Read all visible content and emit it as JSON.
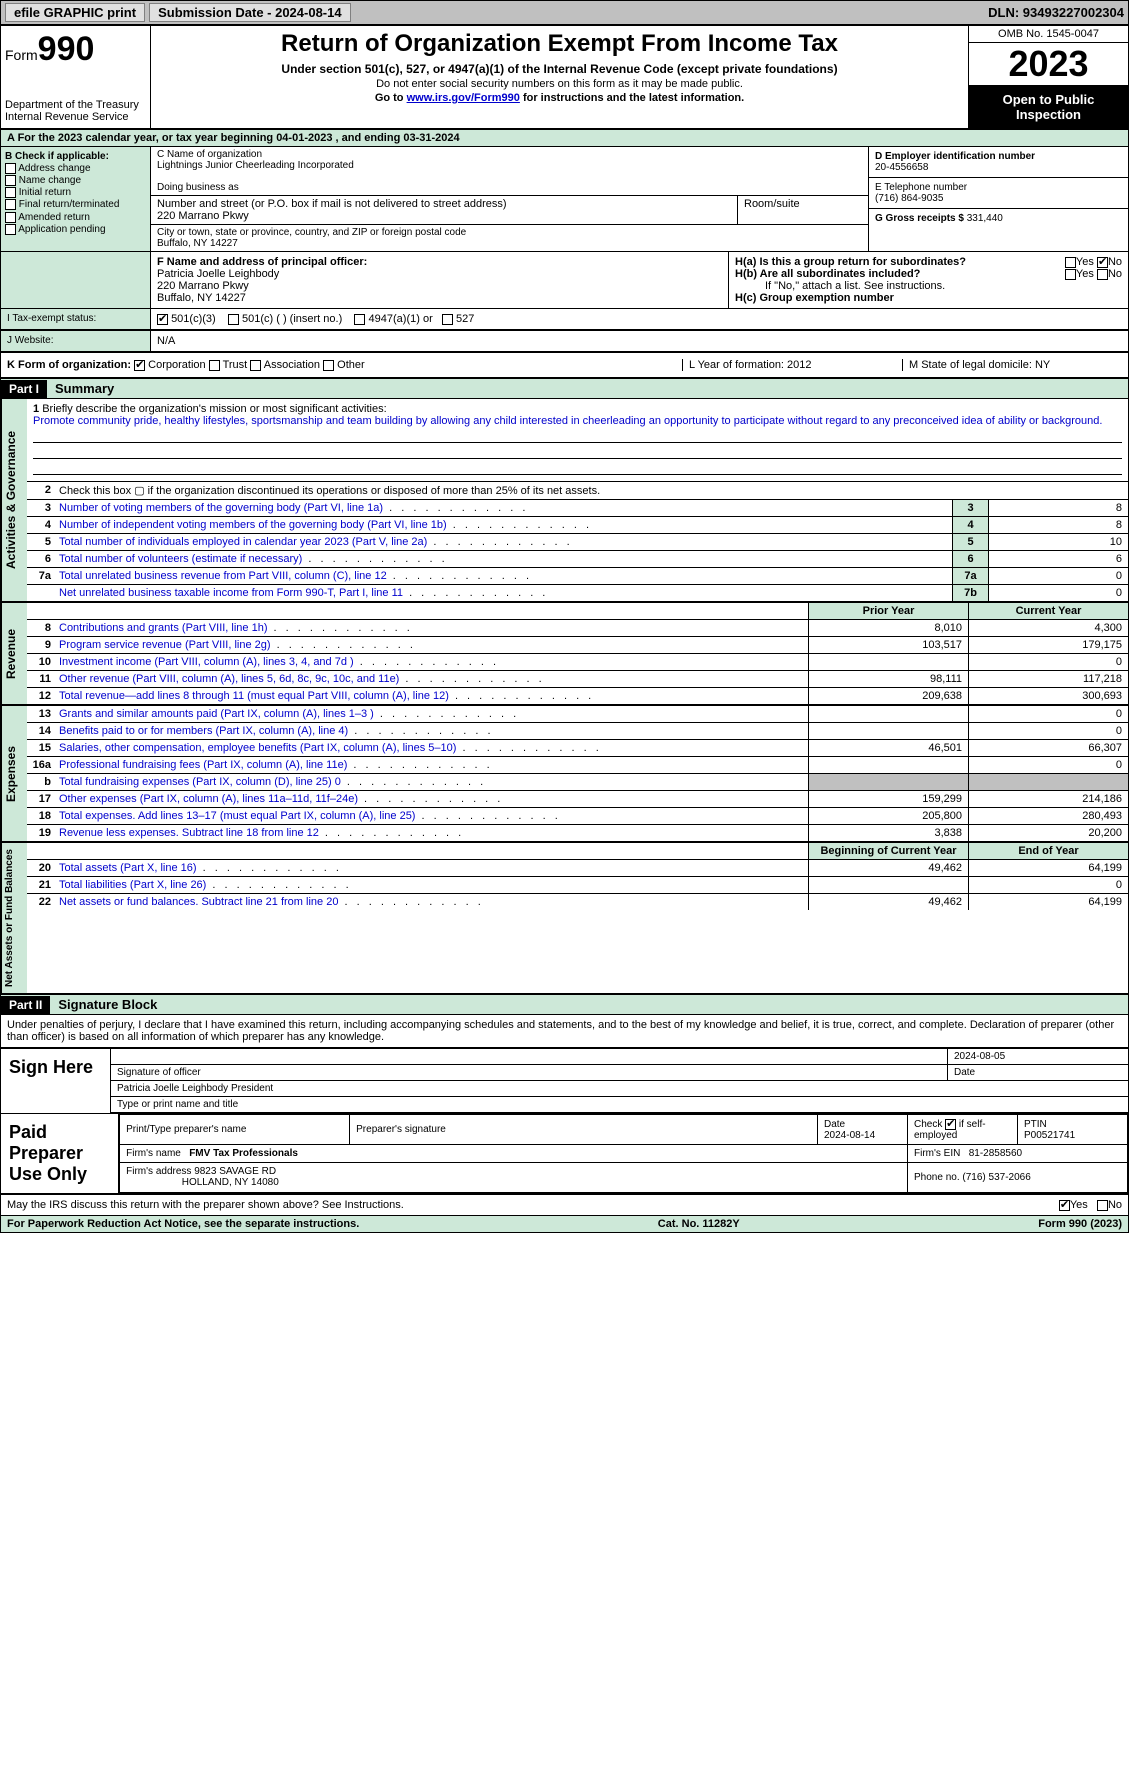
{
  "topbar": {
    "efile": "efile GRAPHIC print",
    "submission_label": "Submission Date - 2024-08-14",
    "dln": "DLN: 93493227002304"
  },
  "header": {
    "form_word": "Form",
    "form_num": "990",
    "dept": "Department of the Treasury Internal Revenue Service",
    "title": "Return of Organization Exempt From Income Tax",
    "subtitle": "Under section 501(c), 527, or 4947(a)(1) of the Internal Revenue Code (except private foundations)",
    "note1": "Do not enter social security numbers on this form as it may be made public.",
    "note2": "Go to www.irs.gov/Form990 for instructions and the latest information.",
    "link": "www.irs.gov/Form990",
    "omb": "OMB No. 1545-0047",
    "year": "2023",
    "open": "Open to Public Inspection"
  },
  "rowA": "A  For the 2023 calendar year, or tax year beginning 04-01-2023    , and ending 03-31-2024",
  "sectionB": {
    "header": "B Check if applicable:",
    "opts": [
      "Address change",
      "Name change",
      "Initial return",
      "Final return/terminated",
      "Amended return",
      "Application pending"
    ]
  },
  "sectionC": {
    "name_lbl": "C Name of organization",
    "name": "Lightnings Junior Cheerleading Incorporated",
    "dba_lbl": "Doing business as",
    "dba": "",
    "street_lbl": "Number and street (or P.O. box if mail is not delivered to street address)",
    "street": "220 Marrano Pkwy",
    "room_lbl": "Room/suite",
    "room": "",
    "city_lbl": "City or town, state or province, country, and ZIP or foreign postal code",
    "city": "Buffalo, NY  14227"
  },
  "sectionD": {
    "ein_lbl": "D Employer identification number",
    "ein": "20-4556658",
    "phone_lbl": "E Telephone number",
    "phone": "(716) 864-9035",
    "gross_lbl": "G Gross receipts $",
    "gross": "331,440"
  },
  "sectionF": {
    "lbl": "F  Name and address of principal officer:",
    "name": "Patricia Joelle Leighbody",
    "addr1": "220 Marrano Pkwy",
    "addr2": "Buffalo, NY  14227"
  },
  "sectionH": {
    "ha": "H(a)  Is this a group return for subordinates?",
    "hb": "H(b)  Are all subordinates included?",
    "hb_note": "If \"No,\" attach a list. See instructions.",
    "hc": "H(c)  Group exemption number",
    "yes": "Yes",
    "no": "No"
  },
  "status": {
    "i_lbl": "I    Tax-exempt status:",
    "opt1": "501(c)(3)",
    "opt2": "501(c) (  ) (insert no.)",
    "opt3": "4947(a)(1) or",
    "opt4": "527",
    "j_lbl": "J   Website:",
    "j_val": "N/A"
  },
  "kRow": {
    "k": "K Form of organization:",
    "opts": [
      "Corporation",
      "Trust",
      "Association",
      "Other"
    ],
    "l": "L Year of formation: 2012",
    "m": "M State of legal domicile: NY"
  },
  "part1": {
    "label": "Part I",
    "title": "Summary"
  },
  "mission": {
    "num": "1",
    "prompt": "Briefly describe the organization's mission or most significant activities:",
    "text": "Promote community pride, healthy lifestyles, sportsmanship and team building by allowing any child interested in cheerleading an opportunity to participate without regard to any preconceived idea of ability or background."
  },
  "line2": "Check this box  ▢  if the organization discontinued its operations or disposed of more than 25% of its net assets.",
  "govLines": [
    {
      "n": "3",
      "t": "Number of voting members of the governing body (Part VI, line 1a)",
      "b": "3",
      "v": "8"
    },
    {
      "n": "4",
      "t": "Number of independent voting members of the governing body (Part VI, line 1b)",
      "b": "4",
      "v": "8"
    },
    {
      "n": "5",
      "t": "Total number of individuals employed in calendar year 2023 (Part V, line 2a)",
      "b": "5",
      "v": "10"
    },
    {
      "n": "6",
      "t": "Total number of volunteers (estimate if necessary)",
      "b": "6",
      "v": "6"
    },
    {
      "n": "7a",
      "t": "Total unrelated business revenue from Part VIII, column (C), line 12",
      "b": "7a",
      "v": "0"
    },
    {
      "n": "",
      "t": "Net unrelated business taxable income from Form 990-T, Part I, line 11",
      "b": "7b",
      "v": "0"
    }
  ],
  "revHeader": {
    "prior": "Prior Year",
    "current": "Current Year"
  },
  "revLines": [
    {
      "n": "8",
      "t": "Contributions and grants (Part VIII, line 1h)",
      "p": "8,010",
      "c": "4,300"
    },
    {
      "n": "9",
      "t": "Program service revenue (Part VIII, line 2g)",
      "p": "103,517",
      "c": "179,175"
    },
    {
      "n": "10",
      "t": "Investment income (Part VIII, column (A), lines 3, 4, and 7d )",
      "p": "",
      "c": "0"
    },
    {
      "n": "11",
      "t": "Other revenue (Part VIII, column (A), lines 5, 6d, 8c, 9c, 10c, and 11e)",
      "p": "98,111",
      "c": "117,218"
    },
    {
      "n": "12",
      "t": "Total revenue—add lines 8 through 11 (must equal Part VIII, column (A), line 12)",
      "p": "209,638",
      "c": "300,693"
    }
  ],
  "expLines": [
    {
      "n": "13",
      "t": "Grants and similar amounts paid (Part IX, column (A), lines 1–3 )",
      "p": "",
      "c": "0"
    },
    {
      "n": "14",
      "t": "Benefits paid to or for members (Part IX, column (A), line 4)",
      "p": "",
      "c": "0"
    },
    {
      "n": "15",
      "t": "Salaries, other compensation, employee benefits (Part IX, column (A), lines 5–10)",
      "p": "46,501",
      "c": "66,307"
    },
    {
      "n": "16a",
      "t": "Professional fundraising fees (Part IX, column (A), line 11e)",
      "p": "",
      "c": "0"
    },
    {
      "n": "b",
      "t": "Total fundraising expenses (Part IX, column (D), line 25) 0",
      "p": "shade",
      "c": "shade"
    },
    {
      "n": "17",
      "t": "Other expenses (Part IX, column (A), lines 11a–11d, 11f–24e)",
      "p": "159,299",
      "c": "214,186"
    },
    {
      "n": "18",
      "t": "Total expenses. Add lines 13–17 (must equal Part IX, column (A), line 25)",
      "p": "205,800",
      "c": "280,493"
    },
    {
      "n": "19",
      "t": "Revenue less expenses. Subtract line 18 from line 12",
      "p": "3,838",
      "c": "20,200"
    }
  ],
  "naHeader": {
    "begin": "Beginning of Current Year",
    "end": "End of Year"
  },
  "naLines": [
    {
      "n": "20",
      "t": "Total assets (Part X, line 16)",
      "p": "49,462",
      "c": "64,199"
    },
    {
      "n": "21",
      "t": "Total liabilities (Part X, line 26)",
      "p": "",
      "c": "0"
    },
    {
      "n": "22",
      "t": "Net assets or fund balances. Subtract line 21 from line 20",
      "p": "49,462",
      "c": "64,199"
    }
  ],
  "vlabels": {
    "gov": "Activities & Governance",
    "rev": "Revenue",
    "exp": "Expenses",
    "na": "Net Assets or Fund Balances"
  },
  "part2": {
    "label": "Part II",
    "title": "Signature Block"
  },
  "sig": {
    "decl": "Under penalties of perjury, I declare that I have examined this return, including accompanying schedules and statements, and to the best of my knowledge and belief, it is true, correct, and complete. Declaration of preparer (other than officer) is based on all information of which preparer has any knowledge.",
    "sign_here": "Sign Here",
    "sig_officer": "Signature of officer",
    "date_lbl": "Date",
    "date": "2024-08-05",
    "officer_name": "Patricia Joelle Leighbody  President",
    "type_lbl": "Type or print name and title"
  },
  "paid": {
    "label": "Paid Preparer Use Only",
    "prep_name_lbl": "Print/Type preparer's name",
    "prep_sig_lbl": "Preparer's signature",
    "date_lbl": "Date",
    "date": "2024-08-14",
    "check_lbl": "Check ▢ if self-employed",
    "ptin_lbl": "PTIN",
    "ptin": "P00521741",
    "firm_name_lbl": "Firm's name",
    "firm_name": "FMV Tax Professionals",
    "firm_ein_lbl": "Firm's EIN",
    "firm_ein": "81-2858560",
    "firm_addr_lbl": "Firm's address",
    "firm_addr": "9823 SAVAGE RD",
    "firm_city": "HOLLAND, NY  14080",
    "phone_lbl": "Phone no.",
    "phone": "(716) 537-2066"
  },
  "discuss": {
    "q": "May the IRS discuss this return with the preparer shown above? See Instructions.",
    "yes": "Yes",
    "no": "No"
  },
  "footer": {
    "left": "For Paperwork Reduction Act Notice, see the separate instructions.",
    "mid": "Cat. No. 11282Y",
    "right": "Form 990 (2023)"
  },
  "colors": {
    "green": "#cde8d8",
    "link": "#0000cc",
    "grey": "#c0c0c0"
  }
}
